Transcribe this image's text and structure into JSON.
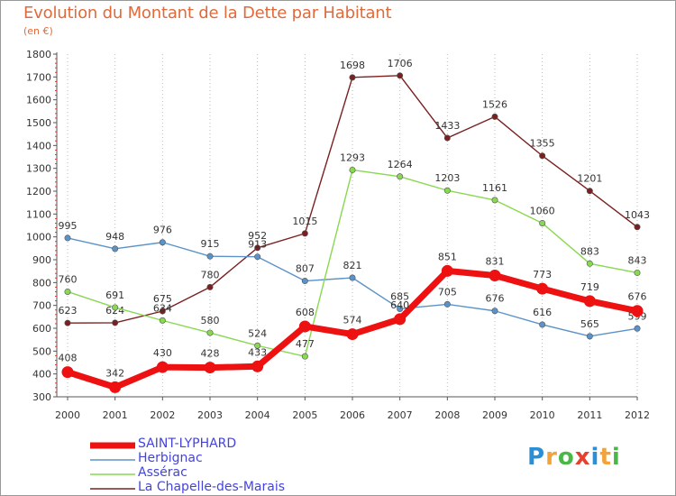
{
  "title": "Evolution du Montant de la Dette par Habitant",
  "subtitle": "(en €)",
  "brand": {
    "letters": [
      "P",
      "r",
      "o",
      "x",
      "i",
      "t",
      "i"
    ],
    "colors": [
      "#2b8fd6",
      "#f2a33a",
      "#49b848",
      "#e8402f",
      "#2b8fd6",
      "#f2a33a",
      "#49b848"
    ]
  },
  "chart_data": {
    "type": "line",
    "title": "Evolution du Montant de la Dette par Habitant",
    "ylabel": "(en €)",
    "xlabel": "",
    "x": [
      "2000",
      "2001",
      "2002",
      "2003",
      "2004",
      "2005",
      "2006",
      "2007",
      "2008",
      "2009",
      "2010",
      "2011",
      "2012"
    ],
    "ylim": [
      300,
      1800
    ],
    "yticks": [
      "300",
      "400",
      "500",
      "600",
      "700",
      "800",
      "900",
      "1000",
      "1100",
      "1200",
      "1300",
      "1400",
      "1500",
      "1600",
      "1700",
      "1800"
    ],
    "grid": "vertical dotted",
    "legend_position": "bottom-left",
    "series": [
      {
        "name": "SAINT-LYPHARD",
        "color": "#ee1111",
        "values": [
          408,
          342,
          430,
          428,
          433,
          608,
          574,
          640,
          851,
          831,
          773,
          719,
          676
        ]
      },
      {
        "name": "Herbignac",
        "color": "#5b93c8",
        "values": [
          995,
          948,
          976,
          915,
          913,
          807,
          821,
          685,
          705,
          676,
          616,
          565,
          599
        ]
      },
      {
        "name": "Assérac",
        "color": "#88d850",
        "values": [
          760,
          691,
          634,
          580,
          524,
          477,
          1293,
          1264,
          1203,
          1161,
          1060,
          883,
          843
        ]
      },
      {
        "name": "La Chapelle-des-Marais",
        "color": "#7a2020",
        "values": [
          623,
          624,
          675,
          780,
          952,
          1015,
          1698,
          1706,
          1433,
          1526,
          1355,
          1201,
          1043
        ]
      }
    ]
  }
}
